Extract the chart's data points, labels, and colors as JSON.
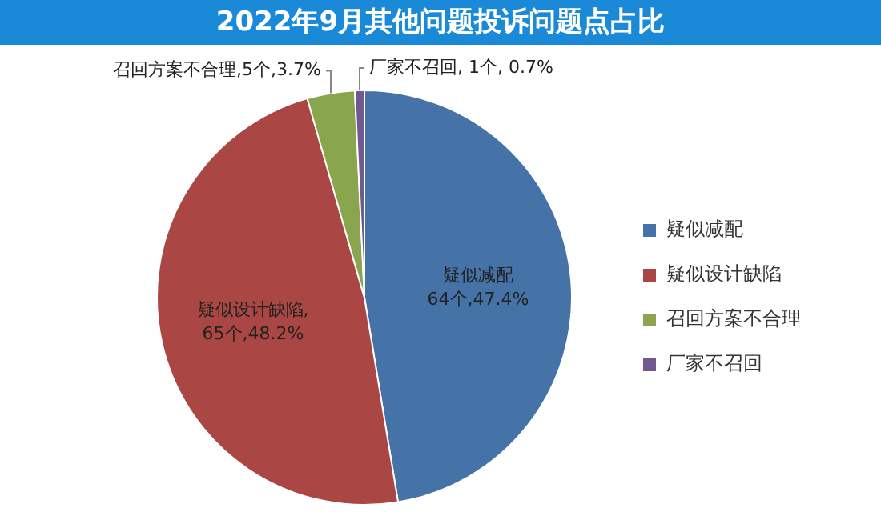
{
  "chart_data": {
    "type": "pie",
    "title": "2022年9月其他问题投诉问题点占比",
    "categories": [
      "疑似减配",
      "疑似设计缺陷",
      "召回方案不合理",
      "厂家不召回"
    ],
    "values": [
      64,
      65,
      5,
      1
    ],
    "colors": [
      "#4572a7",
      "#aa4643",
      "#89a54e",
      "#71588f"
    ],
    "value_labels": [
      "疑似减配\n64个,47.4%",
      "疑似设计缺陷,\n65个,48.2%",
      "召回方案不合理,5个,3.7%",
      "厂家不召回, 1个, 0.7%"
    ],
    "legend": "right"
  }
}
